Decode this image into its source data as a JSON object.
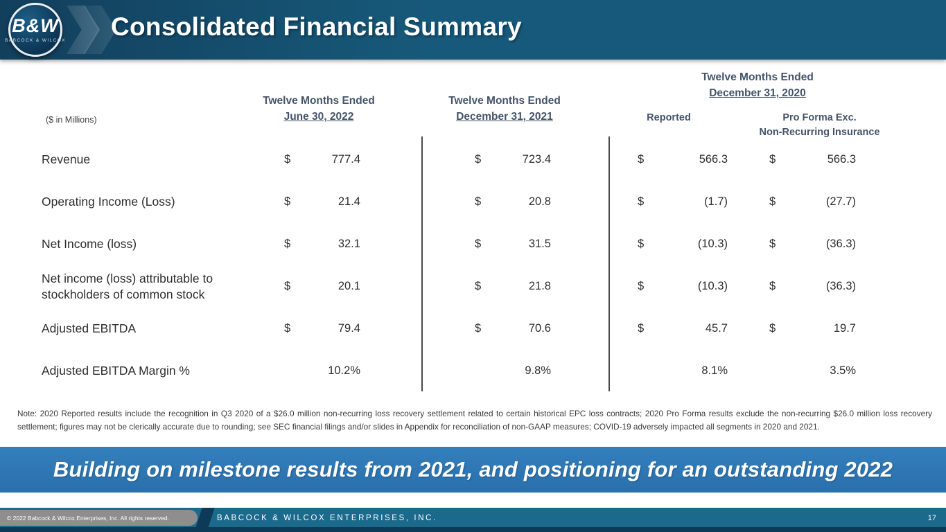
{
  "colors": {
    "header_bg": "#17597A",
    "header_bg_dark": "#123F5C",
    "banner_bg": "#2A6FAC",
    "footer_bg": "#1B6A8C",
    "heading_text": "#44546A"
  },
  "header": {
    "title": "Consolidated Financial Summary",
    "logo": {
      "brand": "B&W",
      "subtext": "BABCOCK & WILCOX"
    }
  },
  "table": {
    "units_label": "($ in Millions)",
    "column_groups": [
      {
        "period": "Twelve Months Ended",
        "date": "June 30, 2022"
      },
      {
        "period": "Twelve Months Ended",
        "date": "December 31, 2021"
      },
      {
        "period": "Twelve Months Ended",
        "date": "December 31, 2020",
        "subcolumns": [
          {
            "label": "Reported"
          },
          {
            "line1": "Pro Forma Exc.",
            "line2": "Non-Recurring Insurance"
          }
        ]
      }
    ],
    "rows": [
      {
        "label": "Revenue",
        "cells": [
          {
            "currency": "$",
            "value": "777.4"
          },
          {
            "currency": "$",
            "value": "723.4"
          },
          {
            "currency": "$",
            "value": "566.3"
          },
          {
            "currency": "$",
            "value": "566.3"
          }
        ]
      },
      {
        "label": "Operating Income (Loss)",
        "cells": [
          {
            "currency": "$",
            "value": "21.4"
          },
          {
            "currency": "$",
            "value": "20.8"
          },
          {
            "currency": "$",
            "value": "(1.7)"
          },
          {
            "currency": "$",
            "value": "(27.7)"
          }
        ]
      },
      {
        "label": "Net Income (loss)",
        "cells": [
          {
            "currency": "$",
            "value": "32.1"
          },
          {
            "currency": "$",
            "value": "31.5"
          },
          {
            "currency": "$",
            "value": "(10.3)"
          },
          {
            "currency": "$",
            "value": "(36.3)"
          }
        ]
      },
      {
        "label": "Net income (loss) attributable to stockholders of common stock",
        "cells": [
          {
            "currency": "$",
            "value": "20.1"
          },
          {
            "currency": "$",
            "value": "21.8"
          },
          {
            "currency": "$",
            "value": "(10.3)"
          },
          {
            "currency": "$",
            "value": "(36.3)"
          }
        ]
      },
      {
        "label": "Adjusted EBITDA",
        "cells": [
          {
            "currency": "$",
            "value": "79.4"
          },
          {
            "currency": "$",
            "value": "70.6"
          },
          {
            "currency": "$",
            "value": "45.7"
          },
          {
            "currency": "$",
            "value": "19.7"
          }
        ]
      },
      {
        "label": "Adjusted EBITDA Margin %",
        "cells": [
          {
            "currency": "",
            "value": "10.2%"
          },
          {
            "currency": "",
            "value": "9.8%"
          },
          {
            "currency": "",
            "value": "8.1%"
          },
          {
            "currency": "",
            "value": "3.5%"
          }
        ]
      }
    ]
  },
  "note": "Note: 2020 Reported results include the recognition in Q3 2020 of a $26.0 million non-recurring loss recovery settlement related to certain historical EPC loss contracts; 2020 Pro Forma results exclude the non-recurring $26.0 million loss recovery settlement; figures may not be clerically accurate due to rounding; see SEC financial filings and/or slides in Appendix for reconciliation of non-GAAP measures; COVID-19 adversely impacted all segments in 2020 and 2021.",
  "banner": {
    "text": "Building on milestone results from 2021, and positioning for an outstanding 2022"
  },
  "footer": {
    "copyright": "© 2022 Babcock & Wilcox Enterprises, Inc.  All rights reserved.",
    "company": "BABCOCK & WILCOX ENTERPRISES, INC.",
    "page_number": "17"
  }
}
